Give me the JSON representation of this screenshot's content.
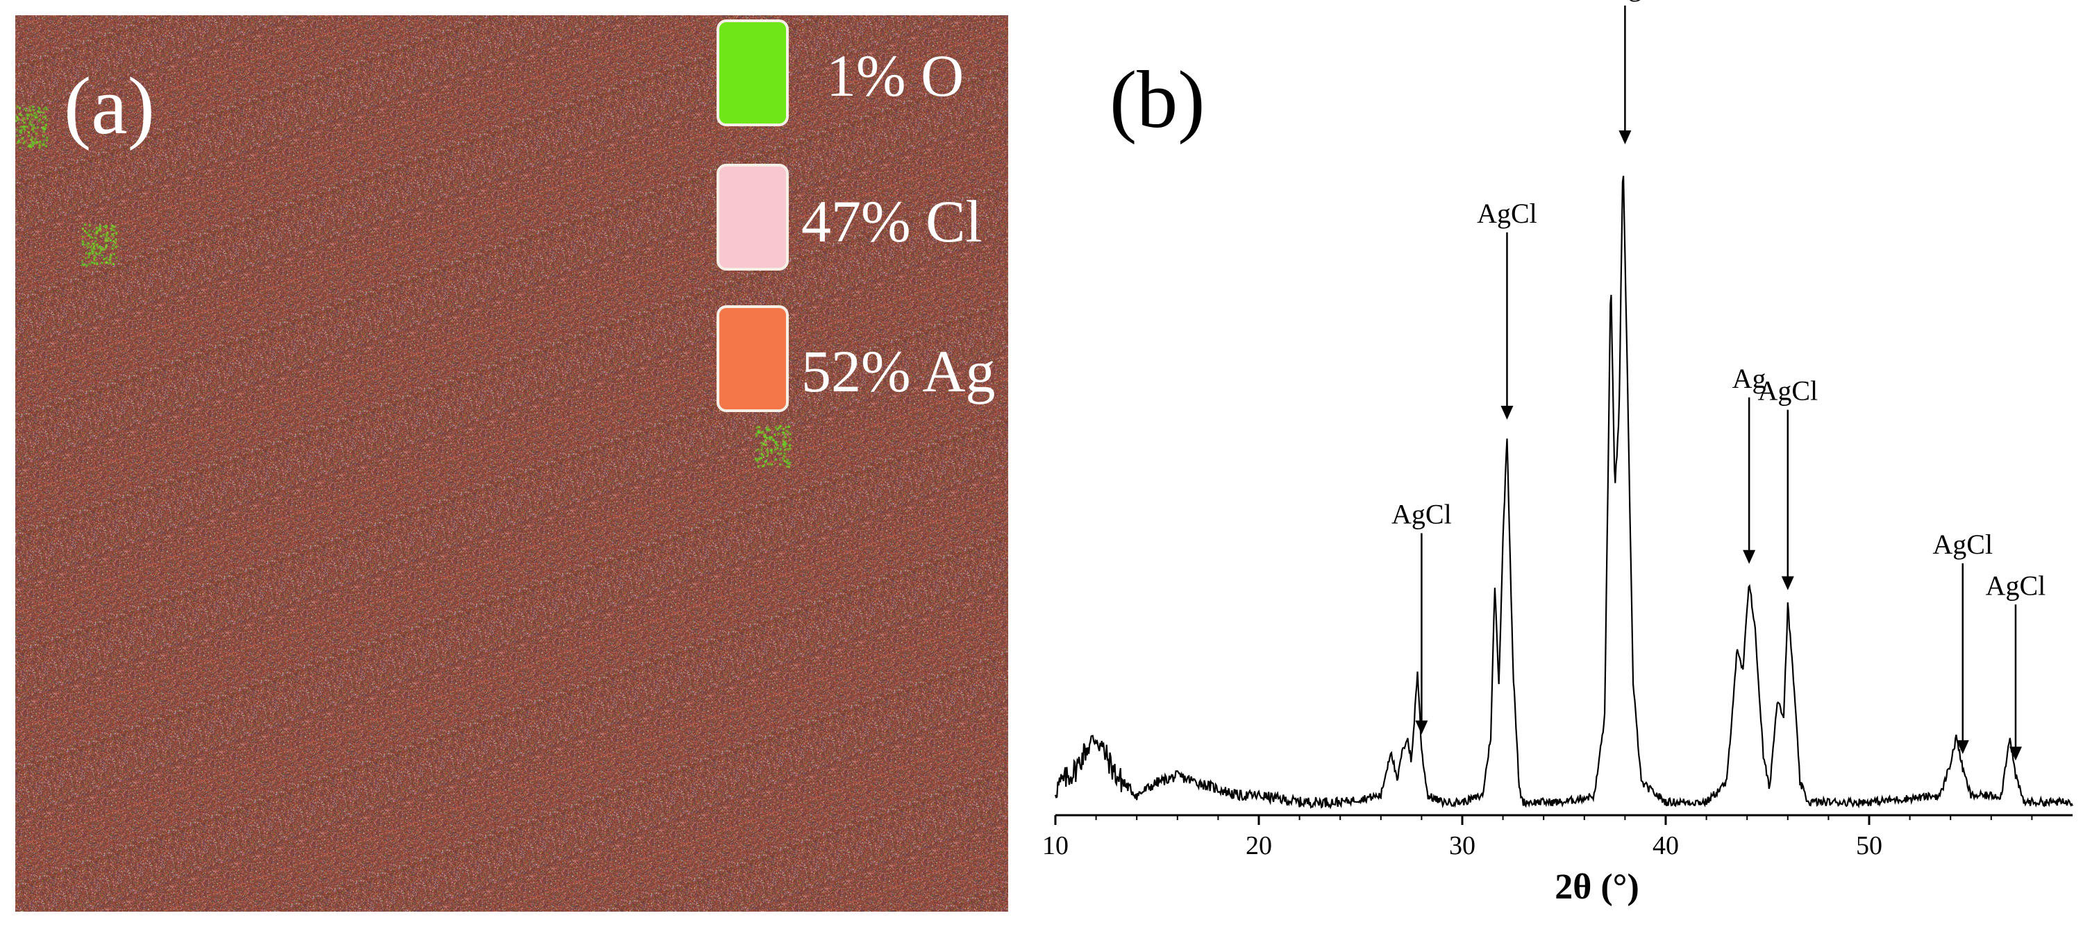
{
  "panel_a": {
    "label": "(a)",
    "legend": [
      {
        "text": "1% O",
        "color": "#6ee617"
      },
      {
        "text": "47% Cl",
        "color": "#f8c7cf"
      },
      {
        "text": "52% Ag",
        "color": "#f4774a"
      }
    ]
  },
  "panel_b": {
    "label": "(b)"
  },
  "chart_data": {
    "type": "line",
    "xlabel": "2θ (°)",
    "ylabel": "",
    "xlim": [
      10,
      60
    ],
    "x_ticks": [
      10,
      20,
      30,
      40,
      50
    ],
    "grid": false,
    "series": [
      {
        "values_xy": [
          [
            10,
            4
          ],
          [
            11,
            7
          ],
          [
            11.5,
            10
          ],
          [
            12,
            12
          ],
          [
            12.5,
            9
          ],
          [
            13,
            6
          ],
          [
            14,
            3
          ],
          [
            15,
            5
          ],
          [
            16,
            6
          ],
          [
            17,
            5
          ],
          [
            18,
            4
          ],
          [
            19,
            3
          ],
          [
            20,
            3
          ],
          [
            22,
            2
          ],
          [
            24,
            2
          ],
          [
            26,
            3
          ],
          [
            26.5,
            10
          ],
          [
            26.8,
            5
          ],
          [
            27.0,
            9
          ],
          [
            27.3,
            12
          ],
          [
            27.5,
            8
          ],
          [
            27.8,
            22
          ],
          [
            28.0,
            10
          ],
          [
            28.3,
            3
          ],
          [
            29,
            2
          ],
          [
            30,
            2
          ],
          [
            31.0,
            3
          ],
          [
            31.4,
            12
          ],
          [
            31.6,
            35
          ],
          [
            31.8,
            20
          ],
          [
            32.0,
            42
          ],
          [
            32.2,
            58
          ],
          [
            32.5,
            22
          ],
          [
            32.8,
            4
          ],
          [
            33,
            2
          ],
          [
            35,
            2
          ],
          [
            36.5,
            3
          ],
          [
            37.0,
            15
          ],
          [
            37.3,
            82
          ],
          [
            37.5,
            50
          ],
          [
            37.7,
            60
          ],
          [
            37.9,
            100
          ],
          [
            38.1,
            70
          ],
          [
            38.4,
            20
          ],
          [
            38.8,
            5
          ],
          [
            40,
            2
          ],
          [
            42,
            2
          ],
          [
            43.0,
            5
          ],
          [
            43.5,
            25
          ],
          [
            43.8,
            22
          ],
          [
            44.1,
            36
          ],
          [
            44.4,
            28
          ],
          [
            44.8,
            9
          ],
          [
            45.1,
            4
          ],
          [
            45.5,
            18
          ],
          [
            45.8,
            15
          ],
          [
            46.0,
            32
          ],
          [
            46.3,
            20
          ],
          [
            46.6,
            5
          ],
          [
            47,
            2
          ],
          [
            50,
            2
          ],
          [
            53.5,
            3
          ],
          [
            54.0,
            8
          ],
          [
            54.3,
            12
          ],
          [
            54.6,
            7
          ],
          [
            55,
            3
          ],
          [
            56.5,
            3
          ],
          [
            56.9,
            12
          ],
          [
            57.2,
            6
          ],
          [
            57.6,
            2
          ],
          [
            60,
            2
          ]
        ]
      }
    ],
    "annotations": [
      {
        "text": "AgCl",
        "x": 28.0
      },
      {
        "text": "AgCl",
        "x": 32.2
      },
      {
        "text": "Ag",
        "x": 38.0
      },
      {
        "text": "Ag",
        "x": 44.1
      },
      {
        "text": "AgCl",
        "x": 46.0
      },
      {
        "text": "AgCl",
        "x": 54.6
      },
      {
        "text": "AgCl",
        "x": 57.2
      }
    ]
  }
}
